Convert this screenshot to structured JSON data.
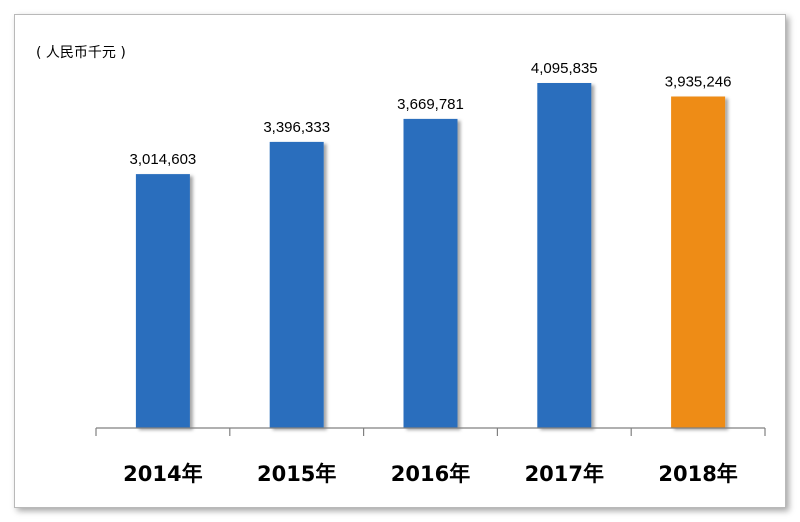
{
  "chart_data": {
    "type": "bar",
    "unit_label": "( 人民币千元 )",
    "categories": [
      "2014年",
      "2015年",
      "2016年",
      "2017年",
      "2018年"
    ],
    "values": [
      3014603,
      3396333,
      3669781,
      4095835,
      3935246
    ],
    "value_labels": [
      "3,014,603",
      "3,396,333",
      "3,669,781",
      "4,095,835",
      "3,935,246"
    ],
    "ylim": [
      0,
      4500000
    ],
    "grid": false,
    "legend": "none",
    "colors": {
      "default_bar": "#2a6ebd",
      "highlight_bar": "#ee8c13",
      "axis": "#808080"
    },
    "highlight_index": 4
  }
}
